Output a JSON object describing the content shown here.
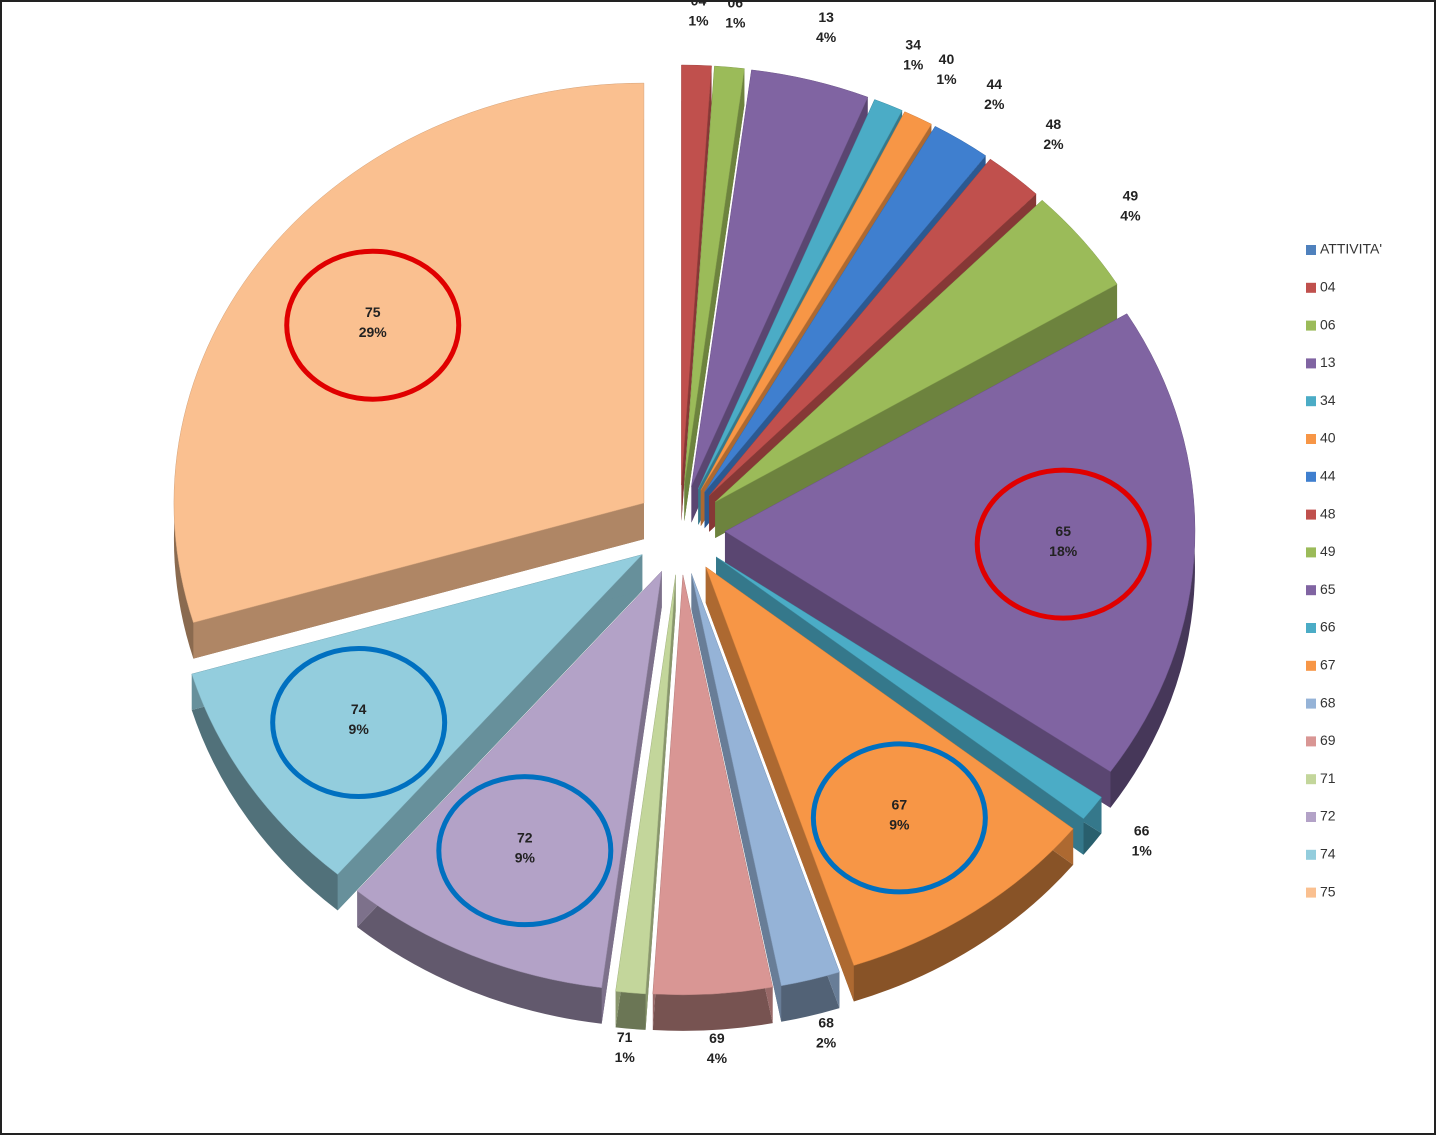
{
  "chart_data": {
    "type": "pie",
    "categories": [
      "ATTIVITA'",
      "04",
      "06",
      "13",
      "34",
      "40",
      "44",
      "48",
      "49",
      "65",
      "66",
      "67",
      "68",
      "69",
      "71",
      "72",
      "74",
      "75"
    ],
    "values": [
      null,
      1,
      1,
      4,
      1,
      1,
      2,
      2,
      4,
      18,
      1,
      9,
      2,
      4,
      1,
      9,
      9,
      29
    ],
    "value_labels": [
      null,
      "1%",
      "1%",
      "4%",
      "1%",
      "1%",
      "2%",
      "2%",
      "4%",
      "18%",
      "1%",
      "9%",
      "2%",
      "4%",
      "1%",
      "9%",
      "9%",
      "29%"
    ],
    "colors": [
      "#4f81bd",
      "#c0504d",
      "#9bbb59",
      "#8064a2",
      "#4bacc6",
      "#f79646",
      "#3f7fcf",
      "#c0504d",
      "#9bbb59",
      "#8064a2",
      "#4bacc6",
      "#f79646",
      "#95b3d7",
      "#d99694",
      "#c3d69b",
      "#b3a2c7",
      "#93cddd",
      "#fac090"
    ]
  }
}
